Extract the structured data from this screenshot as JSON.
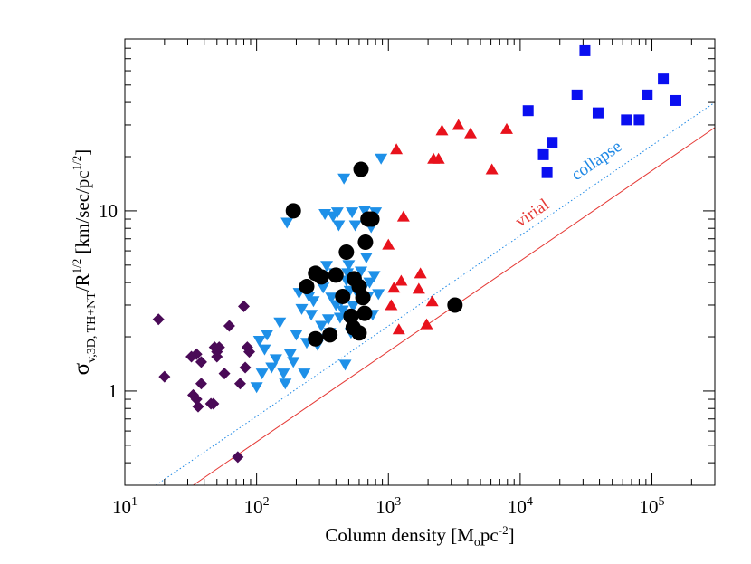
{
  "chart_data": {
    "type": "scatter",
    "xscale": "log",
    "yscale": "log",
    "xlim": [
      10,
      300000
    ],
    "ylim": [
      0.3,
      90
    ],
    "grid": false,
    "legend": "none",
    "xlabel": "Column density [M_opc^-2]",
    "ylabel": "σ_v,3D, TH+NT/R^1/2 [km/sec/pc^1/2]",
    "x_ticks": [
      {
        "value": 10,
        "base": "10",
        "exp": "1"
      },
      {
        "value": 100,
        "base": "10",
        "exp": "2"
      },
      {
        "value": 1000,
        "base": "10",
        "exp": "3"
      },
      {
        "value": 10000,
        "base": "10",
        "exp": "4"
      },
      {
        "value": 100000,
        "base": "10",
        "exp": "5"
      }
    ],
    "y_ticks": [
      {
        "value": 1,
        "label": "1"
      },
      {
        "value": 10,
        "label": "10"
      }
    ],
    "lines": [
      {
        "label": "collapse",
        "color": "#1e88e5",
        "style": "dotted",
        "x": [
          17.2,
          300000
        ],
        "y": [
          0.3,
          40
        ]
      },
      {
        "label": "virial",
        "color": "#e53935",
        "style": "solid",
        "x": [
          33,
          300000
        ],
        "y": [
          0.3,
          29
        ]
      }
    ],
    "series": [
      {
        "marker": "diamond",
        "color": "#4a0a57",
        "x": [
          18,
          20,
          33,
          35,
          36,
          38,
          32,
          38,
          35,
          45,
          47,
          48,
          50,
          50,
          52,
          57,
          62,
          72,
          75,
          80,
          82,
          85,
          88
        ],
        "y": [
          2.5,
          1.2,
          0.95,
          1.6,
          0.82,
          1.45,
          1.55,
          1.1,
          0.9,
          0.85,
          0.85,
          1.75,
          1.65,
          1.55,
          1.75,
          1.25,
          2.3,
          0.43,
          1.1,
          2.95,
          1.35,
          1.75,
          1.65
        ]
      },
      {
        "marker": "triangle-down",
        "color": "#1e90e8",
        "x": [
          100,
          105,
          110,
          115,
          120,
          130,
          140,
          150,
          160,
          165,
          170,
          180,
          190,
          200,
          210,
          220,
          230,
          240,
          250,
          260,
          270,
          280,
          290,
          300,
          310,
          320,
          330,
          340,
          350,
          360,
          370,
          380,
          390,
          400,
          410,
          420,
          430,
          440,
          450,
          460,
          470,
          480,
          490,
          500,
          510,
          520,
          530,
          540,
          560,
          580,
          600,
          620,
          640,
          660,
          680,
          700,
          720,
          740,
          760,
          780,
          800,
          840,
          880
        ],
        "y": [
          1.05,
          1.9,
          1.25,
          1.7,
          2.05,
          1.35,
          1.5,
          2.4,
          1.25,
          1.1,
          8.6,
          1.6,
          1.45,
          2.05,
          3.5,
          2.85,
          1.25,
          1.85,
          3.35,
          2.65,
          3.15,
          4.4,
          1.8,
          1.95,
          2.3,
          3.75,
          9.6,
          4.95,
          2.5,
          2.1,
          3.3,
          9.3,
          4.5,
          3.0,
          9.8,
          8.3,
          2.55,
          3.15,
          2.8,
          15.1,
          1.4,
          4.1,
          4.5,
          5.0,
          3.6,
          2.1,
          9.8,
          2.95,
          8.3,
          3.9,
          3.35,
          4.6,
          3.7,
          10.0,
          5.5,
          3.35,
          4.0,
          8.1,
          2.65,
          4.35,
          9.8,
          3.45,
          19.5
        ]
      },
      {
        "marker": "circle",
        "color": "#000000",
        "x": [
          190,
          240,
          280,
          280,
          310,
          360,
          400,
          450,
          480,
          520,
          540,
          550,
          600,
          600,
          620,
          640,
          660,
          670,
          700,
          750,
          3200
        ],
        "y": [
          10.0,
          3.8,
          4.5,
          1.95,
          4.3,
          2.05,
          4.4,
          3.35,
          5.9,
          2.6,
          2.25,
          4.2,
          2.1,
          3.8,
          17.0,
          3.3,
          2.7,
          6.7,
          9.0,
          9.0,
          3.0
        ]
      },
      {
        "marker": "triangle-up",
        "color": "#e8121c",
        "x": [
          1000,
          1050,
          1100,
          1150,
          1200,
          1250,
          1300,
          1700,
          1750,
          1950,
          2150,
          2200,
          2400,
          2550,
          3400,
          4200,
          6100,
          7900
        ],
        "y": [
          6.5,
          3.0,
          3.75,
          22.0,
          2.2,
          4.1,
          9.3,
          3.7,
          4.5,
          2.35,
          3.15,
          19.5,
          19.5,
          28.0,
          30.0,
          27.0,
          17.0,
          28.5
        ]
      },
      {
        "marker": "square",
        "color": "#0a0ff0",
        "x": [
          11500,
          15000,
          16000,
          17500,
          27000,
          31000,
          39000,
          64000,
          80000,
          92000,
          122000,
          152000
        ],
        "y": [
          36.0,
          20.5,
          16.3,
          24.0,
          44.0,
          77.5,
          35.0,
          32.0,
          32.0,
          44.0,
          54.0,
          41.0
        ]
      }
    ]
  }
}
